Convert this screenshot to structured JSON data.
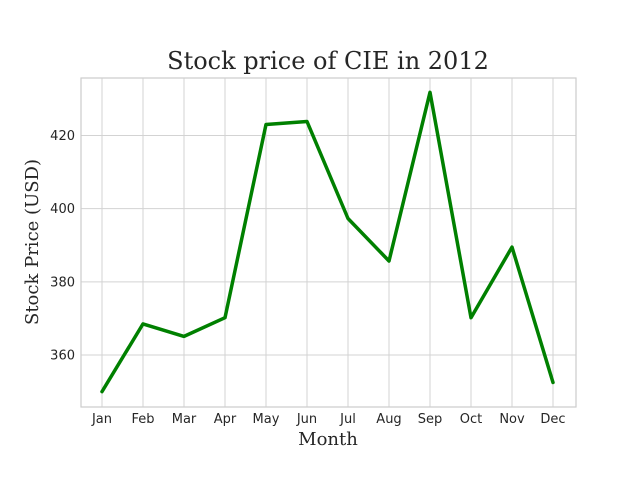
{
  "chart_data": {
    "type": "line",
    "title": "Stock price of CIE in 2012",
    "xlabel": "Month",
    "ylabel": "Stock Price (USD)",
    "categories": [
      "Jan",
      "Feb",
      "Mar",
      "Apr",
      "May",
      "Jun",
      "Jul",
      "Aug",
      "Sep",
      "Oct",
      "Nov",
      "Dec"
    ],
    "series": [
      {
        "values": [
          350.0,
          368.5,
          365.1,
          370.2,
          423.0,
          423.8,
          397.3,
          385.7,
          431.8,
          370.2,
          389.5,
          352.5
        ]
      }
    ],
    "yticks": [
      360,
      380,
      400,
      420
    ],
    "ylim": [
      345.8,
      435.7
    ],
    "grid": true,
    "colors": {
      "line": "#008000",
      "grid": "#d3d3d3",
      "text": "#262626"
    }
  }
}
